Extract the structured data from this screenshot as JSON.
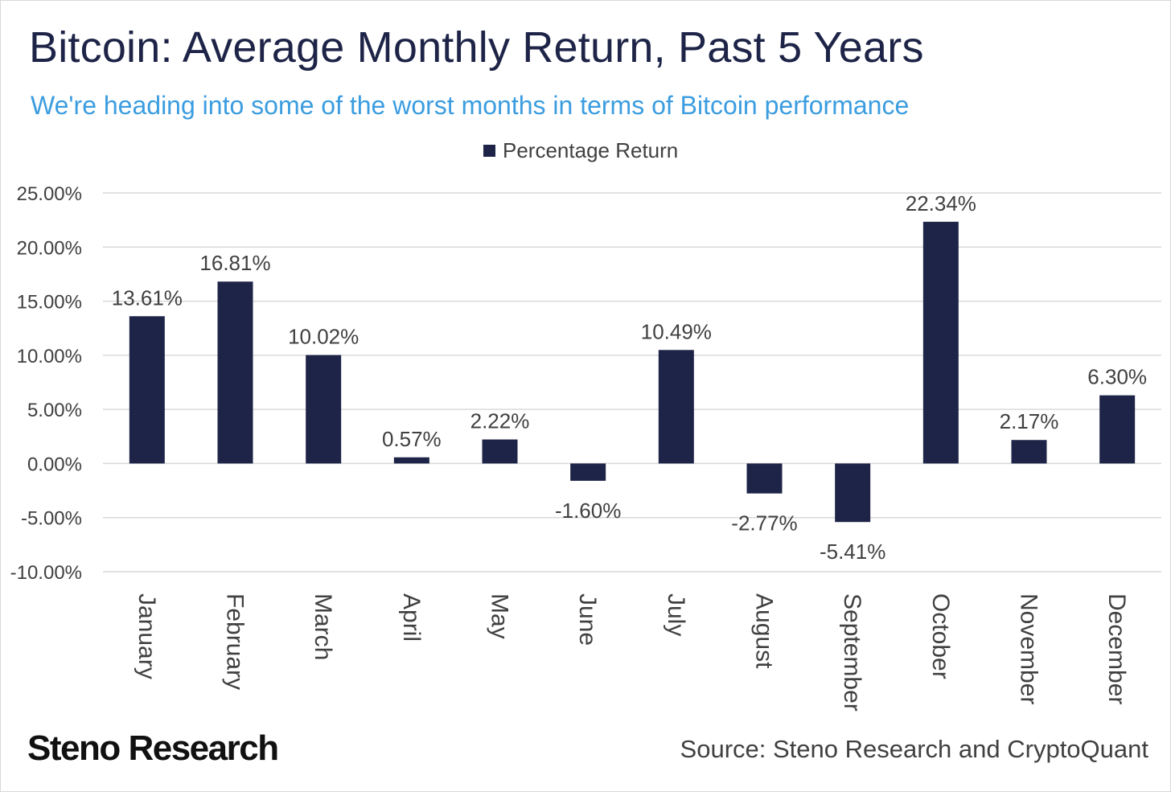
{
  "header": {
    "title": "Bitcoin: Average Monthly Return, Past 5 Years",
    "subtitle": "We're heading into some of the worst months in terms of Bitcoin performance"
  },
  "chart_data": {
    "type": "bar",
    "categories": [
      "January",
      "February",
      "March",
      "April",
      "May",
      "June",
      "July",
      "August",
      "September",
      "October",
      "November",
      "December"
    ],
    "series": [
      {
        "name": "Percentage Return",
        "values": [
          13.61,
          16.81,
          10.02,
          0.57,
          2.22,
          -1.6,
          10.49,
          -2.77,
          -5.41,
          22.34,
          2.17,
          6.3
        ],
        "data_labels": [
          "13.61%",
          "16.81%",
          "10.02%",
          "0.57%",
          "2.22%",
          "-1.60%",
          "10.49%",
          "-2.77%",
          "-5.41%",
          "22.34%",
          "2.17%",
          "6.30%"
        ]
      }
    ],
    "y_ticks": [
      25,
      20,
      15,
      10,
      5,
      0,
      -5,
      -10
    ],
    "y_tick_labels": [
      "25.00%",
      "20.00%",
      "15.00%",
      "10.00%",
      "5.00%",
      "0.00%",
      "-5.00%",
      "-10.00%"
    ],
    "ylim": [
      -10,
      25
    ],
    "grid": true,
    "legend_position": "top-center",
    "x_label_orientation": "rotated-90-clockwise",
    "colors": {
      "bar": "#1e2447",
      "grid": "#d9d9d9",
      "text": "#404040"
    }
  },
  "footer": {
    "brand": "Steno Research",
    "source": "Source: Steno Research and CryptoQuant"
  }
}
